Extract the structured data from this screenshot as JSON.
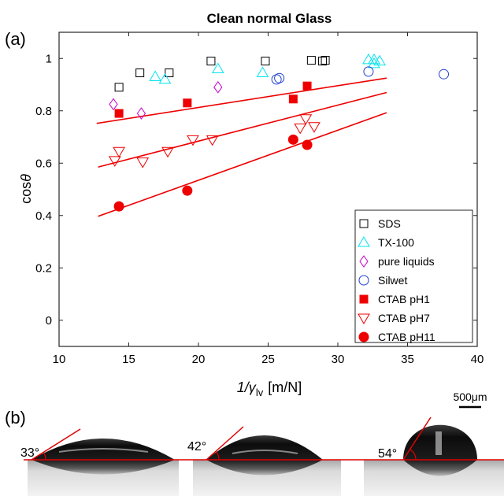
{
  "figure": {
    "panel_a_label": "(a)",
    "panel_b_label": "(b)",
    "scale_bar_label": "500μm"
  },
  "chart_data": {
    "type": "scatter",
    "title": "Clean normal Glass",
    "xlabel_main": "1/γ",
    "xlabel_sub": "lv",
    "xlabel_unit": "[m/N]",
    "ylabel_main": "cos",
    "ylabel_symbol": "θ",
    "xlim": [
      10,
      40
    ],
    "ylim": [
      -0.1,
      1.1
    ],
    "xticks": [
      10,
      15,
      20,
      25,
      30,
      35,
      40
    ],
    "yticks": [
      0,
      0.2,
      0.4,
      0.6,
      0.8,
      1
    ],
    "grid": false,
    "legend_position": "bottom-right",
    "series": [
      {
        "name": "SDS",
        "marker": "square-open",
        "color": "#000000",
        "points": [
          [
            14.3,
            0.89
          ],
          [
            15.8,
            0.945
          ],
          [
            17.9,
            0.945
          ],
          [
            20.9,
            0.99
          ],
          [
            24.8,
            0.99
          ],
          [
            28.1,
            0.993
          ],
          [
            28.9,
            0.99
          ],
          [
            29.1,
            0.993
          ]
        ]
      },
      {
        "name": "TX-100",
        "marker": "triangle-up-open",
        "color": "#00e5ee",
        "points": [
          [
            16.9,
            0.93
          ],
          [
            17.6,
            0.92
          ],
          [
            21.4,
            0.96
          ],
          [
            24.6,
            0.945
          ],
          [
            32.2,
            0.995
          ],
          [
            32.6,
            0.98
          ],
          [
            32.6,
            0.995
          ],
          [
            33.0,
            0.99
          ]
        ]
      },
      {
        "name": "pure liquids",
        "marker": "diamond-open",
        "color": "#cc00cc",
        "points": [
          [
            13.9,
            0.825
          ],
          [
            15.9,
            0.79
          ],
          [
            21.4,
            0.89
          ]
        ]
      },
      {
        "name": "Silwet",
        "marker": "circle-open",
        "color": "#1f3fcc",
        "points": [
          [
            25.6,
            0.92
          ],
          [
            25.8,
            0.925
          ],
          [
            32.2,
            0.95
          ],
          [
            37.6,
            0.94
          ]
        ]
      },
      {
        "name": "CTAB pH1",
        "marker": "square-filled",
        "color": "#ee0000",
        "points": [
          [
            14.3,
            0.79
          ],
          [
            19.2,
            0.83
          ],
          [
            26.8,
            0.845
          ],
          [
            27.8,
            0.895
          ]
        ]
      },
      {
        "name": "CTAB pH7",
        "marker": "triangle-down-open",
        "color": "#ee0000",
        "points": [
          [
            14.0,
            0.61
          ],
          [
            14.3,
            0.645
          ],
          [
            16.0,
            0.605
          ],
          [
            17.8,
            0.645
          ],
          [
            19.6,
            0.69
          ],
          [
            21.0,
            0.69
          ],
          [
            27.3,
            0.735
          ],
          [
            27.7,
            0.77
          ],
          [
            28.3,
            0.74
          ]
        ]
      },
      {
        "name": "CTAB pH11",
        "marker": "circle-filled",
        "color": "#ee0000",
        "points": [
          [
            14.3,
            0.435
          ],
          [
            19.2,
            0.495
          ],
          [
            26.8,
            0.69
          ],
          [
            27.8,
            0.67
          ]
        ]
      }
    ],
    "fit_lines": [
      {
        "series": "CTAB pH1",
        "color": "#ee0000",
        "x": [
          12.7,
          33.5
        ],
        "y": [
          0.752,
          0.925
        ]
      },
      {
        "series": "CTAB pH7",
        "color": "#ee0000",
        "x": [
          12.8,
          33.5
        ],
        "y": [
          0.585,
          0.87
        ]
      },
      {
        "series": "CTAB pH11",
        "color": "#ee0000",
        "x": [
          12.8,
          33.5
        ],
        "y": [
          0.397,
          0.793
        ]
      }
    ]
  },
  "droplets": [
    {
      "angle_label": "33°"
    },
    {
      "angle_label": "42°"
    },
    {
      "angle_label": "54°"
    }
  ]
}
